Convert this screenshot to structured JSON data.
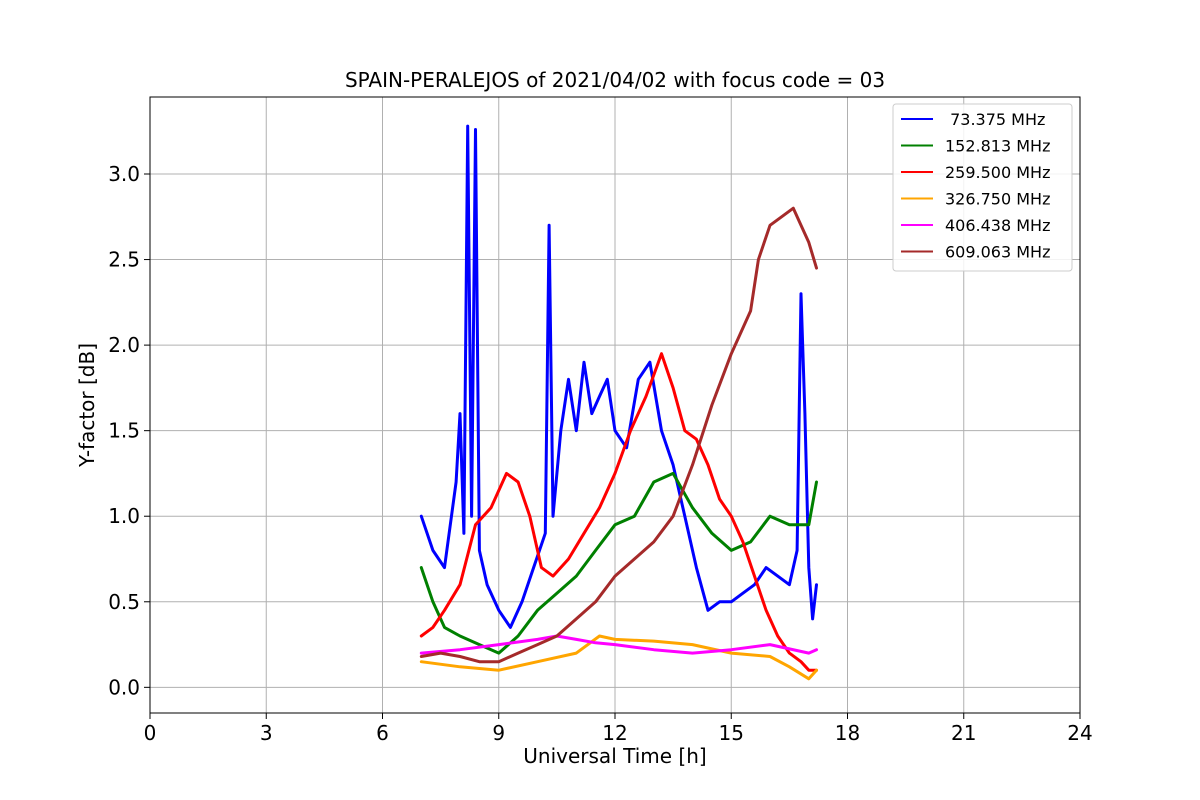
{
  "chart_data": {
    "type": "line",
    "title": "SPAIN-PERALEJOS of 2021/04/02 with focus code = 03",
    "xlabel": "Universal Time [h]",
    "ylabel": "Y-factor [dB]",
    "xlim": [
      0,
      24
    ],
    "ylim": [
      -0.15,
      3.45
    ],
    "xticks": [
      0,
      3,
      6,
      9,
      12,
      15,
      18,
      21,
      24
    ],
    "xtick_labels": [
      "0",
      "3",
      "6",
      "9",
      "12",
      "15",
      "18",
      "21",
      "24"
    ],
    "yticks": [
      0.0,
      0.5,
      1.0,
      1.5,
      2.0,
      2.5,
      3.0
    ],
    "ytick_labels": [
      "0.0",
      "0.5",
      "1.0",
      "1.5",
      "2.0",
      "2.5",
      "3.0"
    ],
    "grid": true,
    "legend_position": "top-right",
    "series": [
      {
        "name": " 73.375 MHz",
        "color": "#0000ff",
        "x": [
          7.0,
          7.3,
          7.6,
          7.9,
          8.0,
          8.1,
          8.2,
          8.3,
          8.4,
          8.5,
          8.7,
          9.0,
          9.3,
          9.6,
          9.9,
          10.2,
          10.3,
          10.4,
          10.6,
          10.8,
          11.0,
          11.2,
          11.4,
          11.6,
          11.8,
          12.0,
          12.3,
          12.6,
          12.9,
          13.2,
          13.5,
          13.8,
          14.1,
          14.4,
          14.7,
          15.0,
          15.3,
          15.6,
          15.9,
          16.2,
          16.5,
          16.7,
          16.8,
          16.9,
          17.0,
          17.1,
          17.2
        ],
        "y": [
          1.0,
          0.8,
          0.7,
          1.2,
          1.6,
          0.9,
          3.28,
          1.0,
          3.26,
          0.8,
          0.6,
          0.45,
          0.35,
          0.5,
          0.7,
          0.9,
          2.7,
          1.0,
          1.5,
          1.8,
          1.5,
          1.9,
          1.6,
          1.7,
          1.8,
          1.5,
          1.4,
          1.8,
          1.9,
          1.5,
          1.3,
          1.0,
          0.7,
          0.45,
          0.5,
          0.5,
          0.55,
          0.6,
          0.7,
          0.65,
          0.6,
          0.8,
          2.3,
          1.6,
          0.7,
          0.4,
          0.6
        ]
      },
      {
        "name": "152.813 MHz",
        "color": "#008000",
        "x": [
          7.0,
          7.3,
          7.6,
          8.0,
          8.5,
          9.0,
          9.5,
          10.0,
          10.5,
          11.0,
          11.5,
          12.0,
          12.5,
          13.0,
          13.5,
          14.0,
          14.5,
          15.0,
          15.5,
          16.0,
          16.5,
          17.0,
          17.2
        ],
        "y": [
          0.7,
          0.5,
          0.35,
          0.3,
          0.25,
          0.2,
          0.3,
          0.45,
          0.55,
          0.65,
          0.8,
          0.95,
          1.0,
          1.2,
          1.25,
          1.05,
          0.9,
          0.8,
          0.85,
          1.0,
          0.95,
          0.95,
          1.2
        ]
      },
      {
        "name": "259.500 MHz",
        "color": "#ff0000",
        "x": [
          7.0,
          7.3,
          7.6,
          8.0,
          8.4,
          8.8,
          9.2,
          9.5,
          9.8,
          10.1,
          10.4,
          10.8,
          11.2,
          11.6,
          12.0,
          12.4,
          12.8,
          13.2,
          13.5,
          13.8,
          14.1,
          14.4,
          14.7,
          15.0,
          15.3,
          15.6,
          15.9,
          16.2,
          16.5,
          16.8,
          17.0,
          17.2
        ],
        "y": [
          0.3,
          0.35,
          0.45,
          0.6,
          0.95,
          1.05,
          1.25,
          1.2,
          1.0,
          0.7,
          0.65,
          0.75,
          0.9,
          1.05,
          1.25,
          1.5,
          1.7,
          1.95,
          1.75,
          1.5,
          1.45,
          1.3,
          1.1,
          1.0,
          0.85,
          0.65,
          0.45,
          0.3,
          0.2,
          0.15,
          0.1,
          0.1
        ]
      },
      {
        "name": "326.750 MHz",
        "color": "#ffa500",
        "x": [
          7.0,
          8.0,
          9.0,
          10.0,
          11.0,
          11.6,
          12.0,
          13.0,
          14.0,
          15.0,
          16.0,
          16.5,
          17.0,
          17.2
        ],
        "y": [
          0.15,
          0.12,
          0.1,
          0.15,
          0.2,
          0.3,
          0.28,
          0.27,
          0.25,
          0.2,
          0.18,
          0.12,
          0.05,
          0.1
        ]
      },
      {
        "name": "406.438 MHz",
        "color": "#ff00ff",
        "x": [
          7.0,
          8.0,
          9.0,
          10.0,
          10.5,
          11.0,
          11.5,
          12.0,
          13.0,
          14.0,
          15.0,
          16.0,
          17.0,
          17.2
        ],
        "y": [
          0.2,
          0.22,
          0.25,
          0.28,
          0.3,
          0.28,
          0.26,
          0.25,
          0.22,
          0.2,
          0.22,
          0.25,
          0.2,
          0.22
        ]
      },
      {
        "name": "609.063 MHz",
        "color": "#a52a2a",
        "x": [
          7.0,
          7.5,
          8.0,
          8.5,
          9.0,
          9.5,
          10.0,
          10.5,
          11.0,
          11.5,
          12.0,
          12.5,
          13.0,
          13.5,
          14.0,
          14.5,
          15.0,
          15.5,
          15.7,
          16.0,
          16.3,
          16.6,
          16.8,
          17.0,
          17.2
        ],
        "y": [
          0.18,
          0.2,
          0.18,
          0.15,
          0.15,
          0.2,
          0.25,
          0.3,
          0.4,
          0.5,
          0.65,
          0.75,
          0.85,
          1.0,
          1.3,
          1.65,
          1.95,
          2.2,
          2.5,
          2.7,
          2.75,
          2.8,
          2.7,
          2.6,
          2.45
        ]
      }
    ]
  }
}
